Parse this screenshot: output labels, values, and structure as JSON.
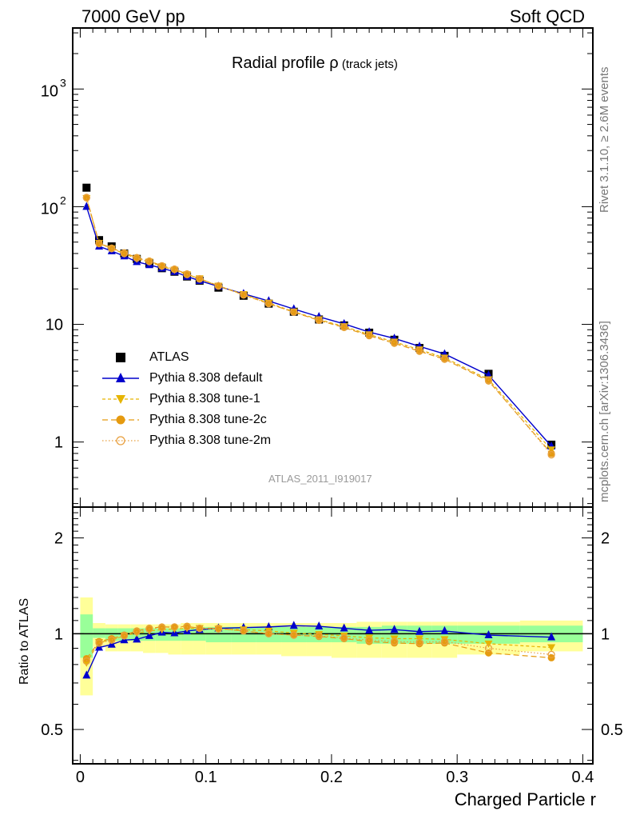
{
  "header": {
    "left": "7000 GeV pp",
    "right": "Soft QCD"
  },
  "title": {
    "main": "Radial profile ",
    "rho": "ρ",
    "sub": " (track jets)"
  },
  "watermark": "ATLAS_2011_I919017",
  "side_labels": {
    "rivet": "Rivet 3.1.10, ≥ 2.6M events",
    "mcplots": "mcplots.cern.ch [arXiv:1306.3436]"
  },
  "axes": {
    "xlabel": "Charged Particle r",
    "ratio_ylabel": "Ratio to ATLAS",
    "xticks": [
      "0",
      "0.1",
      "0.2",
      "0.3",
      "0.4"
    ],
    "main_yticks": [
      "1",
      "10",
      "10",
      "10"
    ],
    "main_ytick_exps": [
      "",
      "",
      "2",
      "3"
    ],
    "ratio_yticks": [
      "0.5",
      "1",
      "2"
    ]
  },
  "legend": [
    {
      "label": "ATLAS"
    },
    {
      "label": "Pythia 8.308 default"
    },
    {
      "label": "Pythia 8.308 tune-1"
    },
    {
      "label": "Pythia 8.308 tune-2c"
    },
    {
      "label": "Pythia 8.308 tune-2m"
    }
  ],
  "colors": {
    "atlas": "#000000",
    "default": "#0000cc",
    "tune1": "#e6b400",
    "tune2c": "#e59a10",
    "tune2m": "#e8a040",
    "band_stat": "#99ff99",
    "band_syst": "#ffff99"
  },
  "chart_data": [
    {
      "type": "scatter",
      "title": "Radial profile ρ (track jets)",
      "xlabel": "Charged Particle r",
      "ylabel": "",
      "xlim": [
        -0.006,
        0.408
      ],
      "ylim": [
        0.28,
        3300
      ],
      "yscale": "log",
      "grid": false,
      "legend_position": "bottom-left",
      "x": [
        0.005,
        0.015,
        0.025,
        0.035,
        0.045,
        0.055,
        0.065,
        0.075,
        0.085,
        0.095,
        0.11,
        0.13,
        0.15,
        0.17,
        0.19,
        0.21,
        0.23,
        0.25,
        0.27,
        0.29,
        0.325,
        0.375
      ],
      "series": [
        {
          "name": "ATLAS",
          "marker": "square",
          "values": [
            145,
            52,
            46,
            40,
            36,
            33,
            30,
            28,
            25.5,
            23.5,
            20.5,
            17.5,
            15,
            12.8,
            11,
            9.8,
            8.5,
            7.4,
            6.3,
            5.4,
            3.8,
            0.95
          ]
        },
        {
          "name": "Pythia 8.308 default",
          "marker": "triangle-up",
          "values": [
            100,
            46,
            42,
            38,
            34,
            32,
            30,
            28,
            25.5,
            23.5,
            21,
            18.2,
            15.8,
            13.5,
            11.6,
            10.1,
            8.6,
            7.6,
            6.5,
            5.6,
            3.7,
            0.92
          ]
        },
        {
          "name": "Pythia 8.308 tune-1",
          "marker": "triangle-down",
          "values": [
            118,
            49,
            44,
            40,
            36,
            34,
            31,
            29,
            26.5,
            24.5,
            21.2,
            18,
            15.2,
            12.8,
            11,
            9.6,
            8.2,
            7.1,
            6.1,
            5.2,
            3.4,
            0.86
          ]
        },
        {
          "name": "Pythia 8.308 tune-2c",
          "marker": "circle",
          "values": [
            120,
            49,
            44.5,
            40.5,
            37,
            34.5,
            31.5,
            29.5,
            26.8,
            24.4,
            21.3,
            17.8,
            15,
            12.7,
            10.8,
            9.4,
            8,
            6.9,
            5.9,
            5.05,
            3.3,
            0.8
          ]
        },
        {
          "name": "Pythia 8.308 tune-2m",
          "marker": "circle-open",
          "values": [
            119,
            48.5,
            44,
            40,
            36.6,
            34.2,
            31.3,
            29.3,
            26.5,
            24.3,
            21.2,
            17.8,
            15,
            12.7,
            10.9,
            9.5,
            8.1,
            7,
            6,
            5.1,
            3.35,
            0.78
          ]
        }
      ]
    },
    {
      "type": "line",
      "xlabel": "Charged Particle r",
      "ylabel": "Ratio to ATLAS",
      "xlim": [
        -0.006,
        0.408
      ],
      "ylim": [
        0.39,
        2.5
      ],
      "yscale": "log",
      "reference_line": 1,
      "x": [
        0.005,
        0.015,
        0.025,
        0.035,
        0.045,
        0.055,
        0.065,
        0.075,
        0.085,
        0.095,
        0.11,
        0.13,
        0.15,
        0.17,
        0.19,
        0.21,
        0.23,
        0.25,
        0.27,
        0.29,
        0.325,
        0.375
      ],
      "bin_edges": [
        0,
        0.01,
        0.02,
        0.03,
        0.04,
        0.05,
        0.06,
        0.07,
        0.08,
        0.09,
        0.1,
        0.12,
        0.14,
        0.16,
        0.18,
        0.2,
        0.22,
        0.24,
        0.26,
        0.28,
        0.3,
        0.35,
        0.4
      ],
      "bands": [
        {
          "name": "syst",
          "low": [
            0.64,
            0.91,
            0.88,
            0.88,
            0.88,
            0.87,
            0.87,
            0.86,
            0.86,
            0.86,
            0.86,
            0.86,
            0.86,
            0.85,
            0.85,
            0.84,
            0.84,
            0.84,
            0.84,
            0.84,
            0.86,
            0.88
          ],
          "high": [
            1.3,
            1.08,
            1.07,
            1.07,
            1.07,
            1.07,
            1.07,
            1.07,
            1.08,
            1.08,
            1.08,
            1.08,
            1.08,
            1.08,
            1.08,
            1.08,
            1.09,
            1.09,
            1.09,
            1.09,
            1.09,
            1.1
          ]
        },
        {
          "name": "stat",
          "low": [
            0.84,
            0.97,
            0.95,
            0.95,
            0.95,
            0.95,
            0.95,
            0.95,
            0.95,
            0.95,
            0.94,
            0.94,
            0.94,
            0.94,
            0.94,
            0.94,
            0.93,
            0.93,
            0.93,
            0.93,
            0.93,
            0.94
          ],
          "high": [
            1.15,
            1.04,
            1.04,
            1.04,
            1.04,
            1.04,
            1.04,
            1.04,
            1.04,
            1.05,
            1.05,
            1.05,
            1.05,
            1.05,
            1.05,
            1.05,
            1.05,
            1.06,
            1.06,
            1.06,
            1.06,
            1.06
          ]
        }
      ],
      "series": [
        {
          "name": "Pythia 8.308 default",
          "marker": "triangle-up",
          "values": [
            0.74,
            0.905,
            0.925,
            0.955,
            0.96,
            0.985,
            1.01,
            1.005,
            1.02,
            1.03,
            1.04,
            1.045,
            1.05,
            1.06,
            1.055,
            1.04,
            1.025,
            1.03,
            1.015,
            1.02,
            0.99,
            0.975
          ]
        },
        {
          "name": "Pythia 8.308 tune-1",
          "marker": "triangle-down",
          "values": [
            0.81,
            0.94,
            0.955,
            0.985,
            1.005,
            1.02,
            1.03,
            1.035,
            1.04,
            1.04,
            1.035,
            1.03,
            1.02,
            1.005,
            0.995,
            0.985,
            0.97,
            0.965,
            0.965,
            0.96,
            0.93,
            0.905
          ]
        },
        {
          "name": "Pythia 8.308 tune-2c",
          "marker": "circle",
          "values": [
            0.835,
            0.945,
            0.965,
            0.99,
            1.02,
            1.04,
            1.05,
            1.05,
            1.055,
            1.04,
            1.04,
            1.02,
            1.0,
            0.99,
            0.98,
            0.965,
            0.945,
            0.935,
            0.93,
            0.935,
            0.87,
            0.84
          ]
        },
        {
          "name": "Pythia 8.308 tune-2m",
          "marker": "circle-open",
          "values": [
            0.82,
            0.935,
            0.955,
            0.985,
            1.015,
            1.035,
            1.045,
            1.05,
            1.05,
            1.04,
            1.035,
            1.02,
            1.0,
            0.99,
            0.985,
            0.97,
            0.955,
            0.945,
            0.94,
            0.945,
            0.9,
            0.86
          ]
        }
      ]
    }
  ]
}
